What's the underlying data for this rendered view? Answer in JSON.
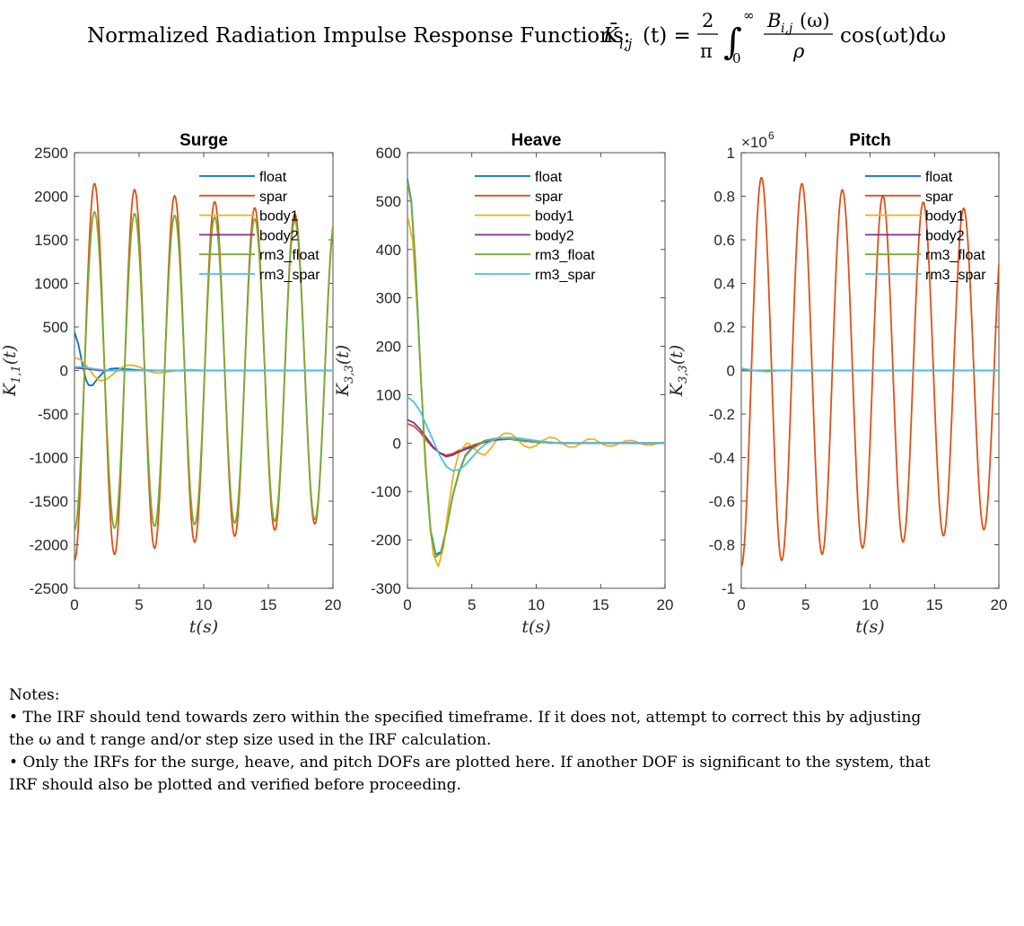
{
  "figure_title": {
    "text": "Normalized Radiation Impulse Response Functions:",
    "formula_lhs": "K̄",
    "formula_sub": "i,j",
    "formula_arg": "(t) =",
    "frac_num": "2",
    "frac_den": "π",
    "integral": "∫",
    "int_upper": "∞",
    "int_lower": "0",
    "integrand_num": "B",
    "integrand_num_sub": "i,j",
    "integrand_num_arg": "(ω)",
    "integrand_den": "ρ",
    "tail": "cos(ωt)dω"
  },
  "chart_data": [
    {
      "type": "line",
      "title": "Surge",
      "xlabel": "t(s)",
      "ylabel": "K",
      "ylabel_sub": "1,1",
      "ylabel_arg": "(t)",
      "xlim": [
        0,
        20
      ],
      "ylim": [
        -2500,
        2500
      ],
      "xticks": [
        0,
        5,
        10,
        15,
        20
      ],
      "yticks": [
        -2500,
        -2000,
        -1500,
        -1000,
        -500,
        0,
        500,
        1000,
        1500,
        2000,
        2500
      ],
      "exponent_label": "",
      "legend": "top-right",
      "grid": false,
      "series": [
        {
          "name": "float",
          "color": "#0072BD",
          "points": [
            [
              0,
              440
            ],
            [
              0.3,
              300
            ],
            [
              0.6,
              80
            ],
            [
              0.9,
              -110
            ],
            [
              1.1,
              -170
            ],
            [
              1.4,
              -170
            ],
            [
              1.8,
              -90
            ],
            [
              2.3,
              -10
            ],
            [
              2.8,
              20
            ],
            [
              3.3,
              25
            ],
            [
              4,
              15
            ],
            [
              5,
              5
            ],
            [
              7,
              0
            ],
            [
              10,
              0
            ],
            [
              20,
              0
            ]
          ]
        },
        {
          "name": "spar",
          "color": "#D95319",
          "osc": {
            "amp0": -2180,
            "amp1": -1730,
            "period": 3.1,
            "phase": 0
          }
        },
        {
          "name": "body1",
          "color": "#EDB120",
          "points": [
            [
              0,
              150
            ],
            [
              0.5,
              120
            ],
            [
              1,
              40
            ],
            [
              1.5,
              -60
            ],
            [
              2,
              -120
            ],
            [
              2.5,
              -100
            ],
            [
              3,
              -40
            ],
            [
              3.5,
              20
            ],
            [
              4,
              60
            ],
            [
              4.5,
              60
            ],
            [
              5,
              40
            ],
            [
              5.5,
              10
            ],
            [
              6,
              -20
            ],
            [
              6.5,
              -30
            ],
            [
              7,
              -20
            ],
            [
              8,
              0
            ],
            [
              9,
              10
            ],
            [
              10,
              0
            ],
            [
              12,
              0
            ],
            [
              20,
              0
            ]
          ]
        },
        {
          "name": "body2",
          "color": "#7E2F8E",
          "points": [
            [
              0,
              30
            ],
            [
              1,
              20
            ],
            [
              2,
              0
            ],
            [
              3,
              0
            ],
            [
              20,
              0
            ]
          ]
        },
        {
          "name": "rm3_float",
          "color": "#77AC30",
          "osc": {
            "amp0": -1830,
            "amp1": -1700,
            "period": 3.1,
            "phase": 0
          }
        },
        {
          "name": "rm3_spar",
          "color": "#4DBEEE",
          "points": [
            [
              0,
              40
            ],
            [
              0.5,
              40
            ],
            [
              1,
              30
            ],
            [
              2,
              10
            ],
            [
              3,
              0
            ],
            [
              20,
              0
            ]
          ]
        }
      ]
    },
    {
      "type": "line",
      "title": "Heave",
      "xlabel": "t(s)",
      "ylabel": "K",
      "ylabel_sub": "3,3",
      "ylabel_arg": "(t)",
      "xlim": [
        0,
        20
      ],
      "ylim": [
        -300,
        600
      ],
      "xticks": [
        0,
        5,
        10,
        15,
        20
      ],
      "yticks": [
        -300,
        -200,
        -100,
        0,
        100,
        200,
        300,
        400,
        500,
        600
      ],
      "exponent_label": "",
      "legend": "top-right",
      "grid": false,
      "series": [
        {
          "name": "float",
          "color": "#0072BD",
          "points": [
            [
              0,
              545
            ],
            [
              0.3,
              500
            ],
            [
              0.6,
              380
            ],
            [
              1,
              160
            ],
            [
              1.4,
              -40
            ],
            [
              1.8,
              -180
            ],
            [
              2.2,
              -230
            ],
            [
              2.6,
              -225
            ],
            [
              3,
              -180
            ],
            [
              3.5,
              -110
            ],
            [
              4,
              -60
            ],
            [
              4.5,
              -25
            ],
            [
              5,
              -10
            ],
            [
              6,
              5
            ],
            [
              7,
              10
            ],
            [
              8,
              8
            ],
            [
              9,
              4
            ],
            [
              10,
              2
            ],
            [
              12,
              0
            ],
            [
              20,
              0
            ]
          ]
        },
        {
          "name": "spar",
          "color": "#D95319",
          "points": [
            [
              0,
              40
            ],
            [
              0.5,
              35
            ],
            [
              1,
              22
            ],
            [
              1.5,
              5
            ],
            [
              2,
              -10
            ],
            [
              2.5,
              -20
            ],
            [
              3,
              -25
            ],
            [
              3.5,
              -22
            ],
            [
              4,
              -15
            ],
            [
              5,
              -5
            ],
            [
              6,
              3
            ],
            [
              7,
              8
            ],
            [
              8,
              8
            ],
            [
              9,
              5
            ],
            [
              10,
              2
            ],
            [
              12,
              0
            ],
            [
              20,
              0
            ]
          ]
        },
        {
          "name": "body1",
          "color": "#EDB120",
          "points": [
            [
              0,
              470
            ],
            [
              0.4,
              420
            ],
            [
              0.8,
              260
            ],
            [
              1.2,
              60
            ],
            [
              1.6,
              -120
            ],
            [
              2,
              -230
            ],
            [
              2.4,
              -255
            ],
            [
              2.8,
              -215
            ],
            [
              3.2,
              -130
            ],
            [
              3.6,
              -60
            ],
            [
              4,
              -20
            ],
            [
              4.6,
              0
            ],
            [
              5,
              -5
            ],
            [
              5.5,
              -20
            ],
            [
              6,
              -25
            ],
            [
              6.5,
              -10
            ],
            [
              7,
              10
            ],
            [
              7.5,
              20
            ],
            [
              8,
              20
            ],
            [
              8.5,
              10
            ],
            [
              9,
              -5
            ],
            [
              9.5,
              -10
            ],
            [
              10,
              -5
            ],
            [
              10.5,
              5
            ],
            [
              11,
              12
            ],
            [
              11.5,
              10
            ],
            [
              12,
              0
            ],
            [
              12.5,
              -8
            ],
            [
              13,
              -8
            ],
            [
              13.5,
              0
            ],
            [
              14,
              8
            ],
            [
              14.5,
              8
            ],
            [
              15,
              0
            ],
            [
              15.5,
              -6
            ],
            [
              16,
              -6
            ],
            [
              16.5,
              0
            ],
            [
              17,
              5
            ],
            [
              17.5,
              5
            ],
            [
              18,
              0
            ],
            [
              18.5,
              -4
            ],
            [
              19,
              -4
            ],
            [
              19.5,
              0
            ],
            [
              20,
              2
            ]
          ]
        },
        {
          "name": "body2",
          "color": "#7E2F8E",
          "points": [
            [
              0,
              48
            ],
            [
              0.5,
              42
            ],
            [
              1,
              28
            ],
            [
              1.5,
              10
            ],
            [
              2,
              -8
            ],
            [
              2.5,
              -20
            ],
            [
              3,
              -28
            ],
            [
              3.5,
              -25
            ],
            [
              4,
              -18
            ],
            [
              5,
              -8
            ],
            [
              6,
              2
            ],
            [
              7,
              7
            ],
            [
              8,
              8
            ],
            [
              9,
              5
            ],
            [
              10,
              2
            ],
            [
              12,
              0
            ],
            [
              20,
              0
            ]
          ]
        },
        {
          "name": "rm3_float",
          "color": "#77AC30",
          "points": [
            [
              0,
              540
            ],
            [
              0.3,
              495
            ],
            [
              0.6,
              375
            ],
            [
              1,
              155
            ],
            [
              1.4,
              -45
            ],
            [
              1.8,
              -185
            ],
            [
              2.2,
              -235
            ],
            [
              2.6,
              -228
            ],
            [
              3,
              -182
            ],
            [
              3.5,
              -112
            ],
            [
              4,
              -62
            ],
            [
              4.5,
              -27
            ],
            [
              5,
              -12
            ],
            [
              6,
              4
            ],
            [
              7,
              10
            ],
            [
              8,
              8
            ],
            [
              9,
              4
            ],
            [
              10,
              2
            ],
            [
              12,
              0
            ],
            [
              20,
              0
            ]
          ]
        },
        {
          "name": "rm3_spar",
          "color": "#4DBEEE",
          "points": [
            [
              0,
              95
            ],
            [
              0.5,
              85
            ],
            [
              1,
              65
            ],
            [
              1.5,
              35
            ],
            [
              2,
              5
            ],
            [
              2.5,
              -25
            ],
            [
              3,
              -48
            ],
            [
              3.5,
              -57
            ],
            [
              4,
              -55
            ],
            [
              4.5,
              -45
            ],
            [
              5,
              -30
            ],
            [
              5.5,
              -15
            ],
            [
              6,
              -3
            ],
            [
              7,
              10
            ],
            [
              8,
              12
            ],
            [
              9,
              9
            ],
            [
              10,
              5
            ],
            [
              11,
              2
            ],
            [
              12,
              0
            ],
            [
              20,
              0
            ]
          ]
        }
      ]
    },
    {
      "type": "line",
      "title": "Pitch",
      "xlabel": "t(s)",
      "ylabel": "K",
      "ylabel_sub": "3,3",
      "ylabel_arg": "(t)",
      "xlim": [
        0,
        20
      ],
      "ylim": [
        -1,
        1
      ],
      "xticks": [
        0,
        5,
        10,
        15,
        20
      ],
      "yticks": [
        -1,
        -0.8,
        -0.6,
        -0.4,
        -0.2,
        0,
        0.2,
        0.4,
        0.6,
        0.8,
        1
      ],
      "exponent_label": "×10",
      "exponent_power": "6",
      "legend": "top-right",
      "grid": false,
      "series": [
        {
          "name": "float",
          "color": "#0072BD",
          "points": [
            [
              0,
              0.005
            ],
            [
              1,
              0
            ],
            [
              20,
              0
            ]
          ]
        },
        {
          "name": "spar",
          "color": "#D95319",
          "osc": {
            "amp0": -0.9,
            "amp1": -0.72,
            "period": 3.14,
            "phase": 0
          }
        },
        {
          "name": "body1",
          "color": "#EDB120",
          "points": [
            [
              0,
              0
            ],
            [
              20,
              0
            ]
          ]
        },
        {
          "name": "body2",
          "color": "#7E2F8E",
          "points": [
            [
              0,
              0
            ],
            [
              20,
              0
            ]
          ]
        },
        {
          "name": "rm3_float",
          "color": "#77AC30",
          "points": [
            [
              0,
              0.005
            ],
            [
              1,
              0
            ],
            [
              20,
              0
            ]
          ]
        },
        {
          "name": "rm3_spar",
          "color": "#4DBEEE",
          "points": [
            [
              0,
              0.01
            ],
            [
              1,
              0
            ],
            [
              2,
              -0.005
            ],
            [
              3,
              0
            ],
            [
              20,
              0
            ]
          ]
        }
      ]
    }
  ],
  "notes": {
    "heading": "Notes:",
    "bullet1": "• The IRF should tend towards zero within the specified timeframe. If it does not, attempt to correct this by adjusting",
    "bullet1_cont": "the ω and t range and/or step size used in the IRF calculation.",
    "bullet2": "• Only the IRFs for the surge, heave, and pitch DOFs are plotted here. If another DOF is significant to the system, that",
    "bullet2_cont": "IRF should also be plotted and verified before proceeding."
  }
}
